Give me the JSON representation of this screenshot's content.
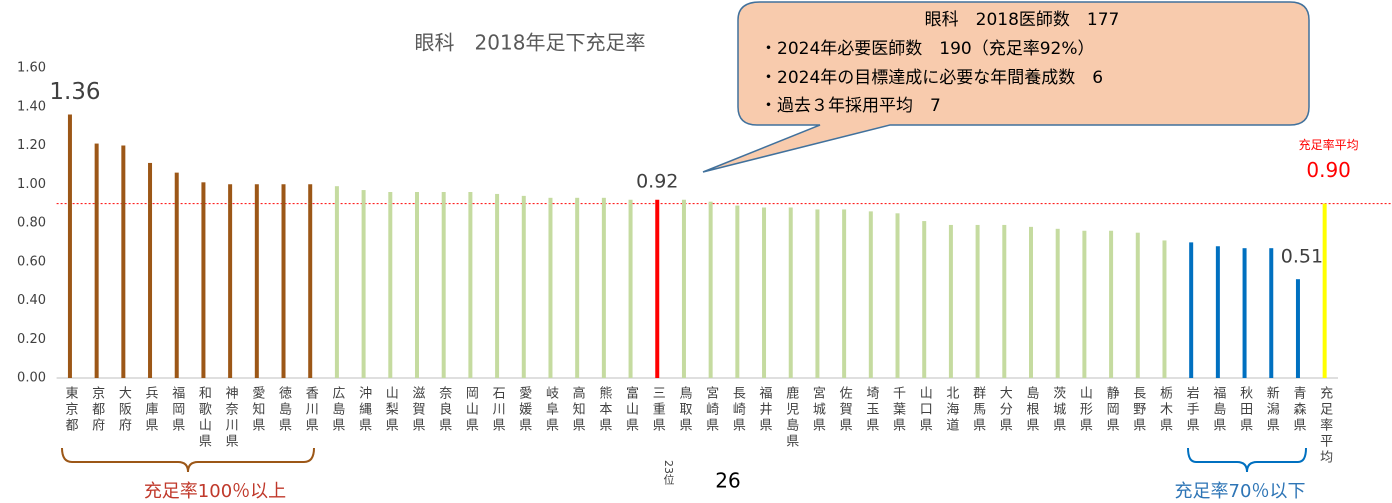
{
  "chart_data": {
    "type": "bar",
    "title": "眼科　2018年足下充足率",
    "categories": [
      "東京都",
      "京都府",
      "大阪府",
      "兵庫県",
      "福岡県",
      "和歌山県",
      "神奈川県",
      "愛知県",
      "徳島県",
      "香川県",
      "広島県",
      "沖縄県",
      "山梨県",
      "滋賀県",
      "奈良県",
      "岡山県",
      "石川県",
      "愛媛県",
      "岐阜県",
      "高知県",
      "熊本県",
      "富山県",
      "三重県",
      "鳥取県",
      "宮崎県",
      "長崎県",
      "福井県",
      "鹿児島県",
      "宮城県",
      "佐賀県",
      "埼玉県",
      "千葉県",
      "山口県",
      "北海道",
      "群馬県",
      "大分県",
      "島根県",
      "茨城県",
      "山形県",
      "静岡県",
      "長野県",
      "栃木県",
      "岩手県",
      "福島県",
      "秋田県",
      "新潟県",
      "青森県",
      "充足率平均"
    ],
    "values": [
      1.36,
      1.21,
      1.2,
      1.11,
      1.06,
      1.01,
      1.0,
      1.0,
      1.0,
      1.0,
      0.99,
      0.97,
      0.96,
      0.96,
      0.96,
      0.96,
      0.95,
      0.94,
      0.93,
      0.93,
      0.93,
      0.92,
      0.92,
      0.92,
      0.91,
      0.89,
      0.88,
      0.88,
      0.87,
      0.87,
      0.86,
      0.85,
      0.81,
      0.79,
      0.79,
      0.79,
      0.78,
      0.77,
      0.76,
      0.76,
      0.75,
      0.71,
      0.7,
      0.68,
      0.67,
      0.67,
      0.51,
      0.9
    ],
    "value_labels": [
      "1.36",
      null,
      null,
      null,
      null,
      null,
      null,
      null,
      null,
      null,
      null,
      null,
      null,
      null,
      null,
      null,
      null,
      null,
      null,
      null,
      null,
      null,
      "0.92",
      null,
      null,
      null,
      null,
      null,
      null,
      null,
      null,
      null,
      null,
      null,
      null,
      null,
      null,
      null,
      null,
      null,
      null,
      null,
      null,
      null,
      null,
      null,
      "0.51",
      "0.90"
    ],
    "colors": [
      "#9c5717",
      "#9c5717",
      "#9c5717",
      "#9c5717",
      "#9c5717",
      "#9c5717",
      "#9c5717",
      "#9c5717",
      "#9c5717",
      "#9c5717",
      "#c5dba0",
      "#c5dba0",
      "#c5dba0",
      "#c5dba0",
      "#c5dba0",
      "#c5dba0",
      "#c5dba0",
      "#c5dba0",
      "#c5dba0",
      "#c5dba0",
      "#c5dba0",
      "#c5dba0",
      "#ff0000",
      "#c5dba0",
      "#c5dba0",
      "#c5dba0",
      "#c5dba0",
      "#c5dba0",
      "#c5dba0",
      "#c5dba0",
      "#c5dba0",
      "#c5dba0",
      "#c5dba0",
      "#c5dba0",
      "#c5dba0",
      "#c5dba0",
      "#c5dba0",
      "#c5dba0",
      "#c5dba0",
      "#c5dba0",
      "#c5dba0",
      "#c5dba0",
      "#0070c0",
      "#0070c0",
      "#0070c0",
      "#0070c0",
      "#0070c0",
      "#ffff00"
    ],
    "ylim": [
      0,
      1.6
    ],
    "yticks": [
      {
        "value": 0,
        "label": "0.00"
      },
      {
        "value": 0.2,
        "label": "0.20"
      },
      {
        "value": 0.4,
        "label": "0.40"
      },
      {
        "value": 0.6,
        "label": "0.60"
      },
      {
        "value": 0.8,
        "label": "0.80"
      },
      {
        "value": 1.0,
        "label": "1.00"
      },
      {
        "value": 1.2,
        "label": "1.20"
      },
      {
        "value": 1.4,
        "label": "1.40"
      },
      {
        "value": 1.6,
        "label": "1.60"
      }
    ],
    "reference_line": 0.9,
    "average_label": "充足率平均",
    "callout": [
      "眼科　2018医師数　177",
      "・2024年必要医師数　190（充足率92%）",
      "・2024年の目標達成に必要な年間養成数　6",
      "・過去３年採用平均　7"
    ],
    "bracket_high": "充足率100％以上",
    "bracket_low": "充足率70％以下",
    "rank": "23位",
    "page_number": "26"
  }
}
